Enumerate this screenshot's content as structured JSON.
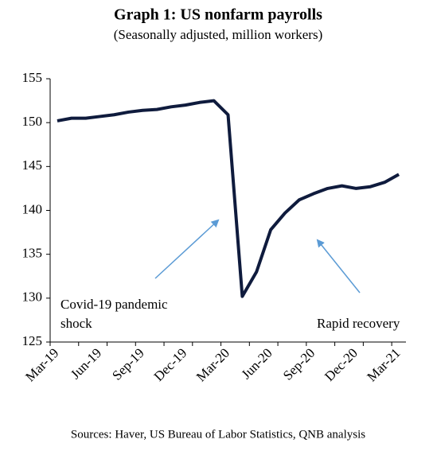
{
  "chart_data": {
    "type": "line",
    "title": "Graph 1: US nonfarm payrolls",
    "subtitle": "(Seasonally adjusted, million workers)",
    "categories": [
      "Mar-19",
      null,
      null,
      "Jun-19",
      null,
      null,
      "Sep-19",
      null,
      null,
      "Dec-19",
      null,
      null,
      "Mar-20",
      null,
      null,
      "Jun-20",
      null,
      null,
      "Sep-20",
      null,
      null,
      "Dec-20",
      null,
      null,
      "Mar-21"
    ],
    "series": [
      {
        "name": "US nonfarm payrolls",
        "color": "#0f1b3d",
        "values": [
          150.2,
          150.5,
          150.5,
          150.7,
          150.9,
          151.2,
          151.4,
          151.5,
          151.8,
          152.0,
          152.3,
          152.5,
          150.9,
          130.2,
          133.0,
          137.8,
          139.7,
          141.2,
          141.9,
          142.5,
          142.8,
          142.5,
          142.7,
          143.2,
          144.1
        ]
      }
    ],
    "ylim": [
      125,
      155
    ],
    "yticks": [
      125,
      130,
      135,
      140,
      145,
      150,
      155
    ],
    "annotations": [
      [
        "Covid-19 pandemic",
        "shock"
      ],
      [
        "Rapid recovery"
      ]
    ],
    "source": "Sources: Haver, US Bureau of Labor Statistics, QNB analysis"
  }
}
